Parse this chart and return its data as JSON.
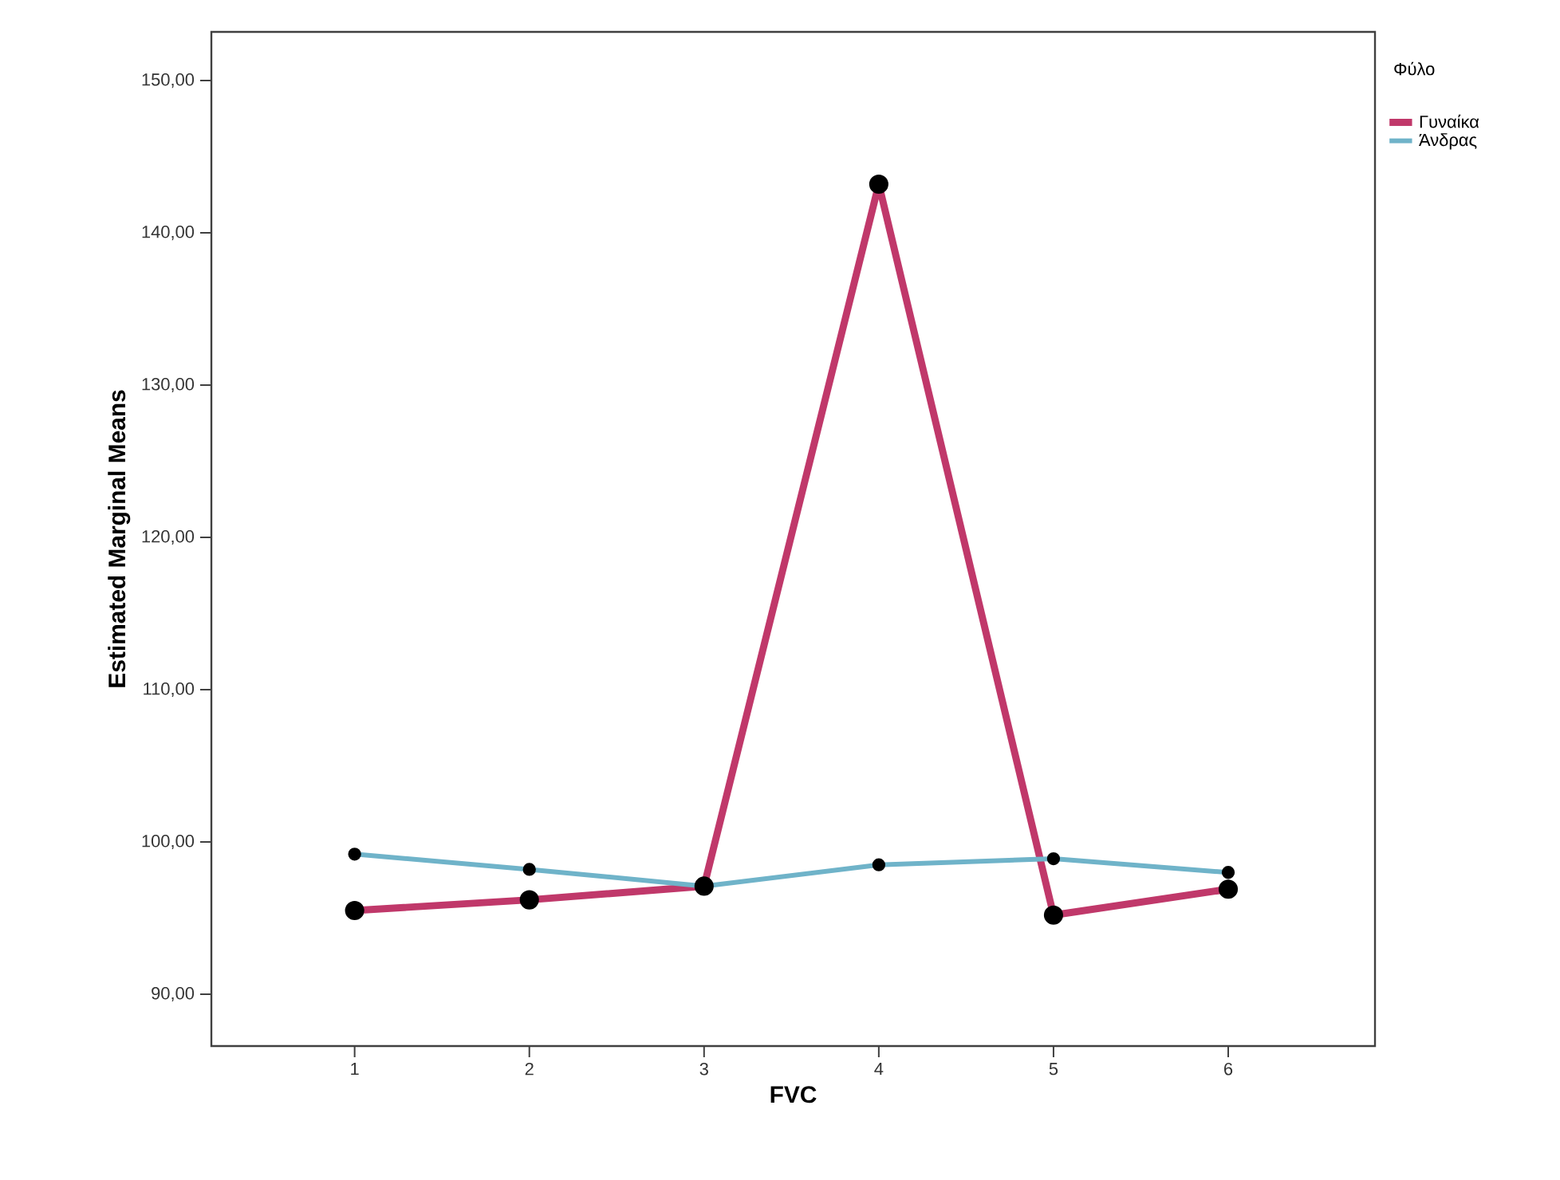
{
  "chart_data": {
    "type": "line",
    "xlabel": "FVC",
    "ylabel": "Estimated Marginal Means",
    "legend_title": "Φύλο",
    "x": [
      1,
      2,
      3,
      4,
      5,
      6
    ],
    "series": [
      {
        "name": "Γυναίκα",
        "color": "#c0386a",
        "values": [
          95.5,
          96.2,
          97.1,
          143.2,
          95.2,
          96.9
        ]
      },
      {
        "name": "Άνδρας",
        "color": "#6fb3c9",
        "values": [
          99.2,
          98.2,
          97.1,
          98.5,
          98.9,
          98.0
        ]
      }
    ],
    "xlim": [
      0.18,
      6.84
    ],
    "xticks": [
      1,
      2,
      3,
      4,
      5,
      6
    ],
    "ylim": [
      86.6,
      153.2
    ],
    "yticks": [
      {
        "value": 90,
        "label": "90,00"
      },
      {
        "value": 100,
        "label": "100,00"
      },
      {
        "value": 110,
        "label": "110,00"
      },
      {
        "value": 120,
        "label": "120,00"
      },
      {
        "value": 130,
        "label": "130,00"
      },
      {
        "value": 140,
        "label": "140,00"
      },
      {
        "value": 150,
        "label": "150,00"
      }
    ],
    "legend": "top right",
    "marker": "circle",
    "line_style": "solid",
    "grid": false
  }
}
